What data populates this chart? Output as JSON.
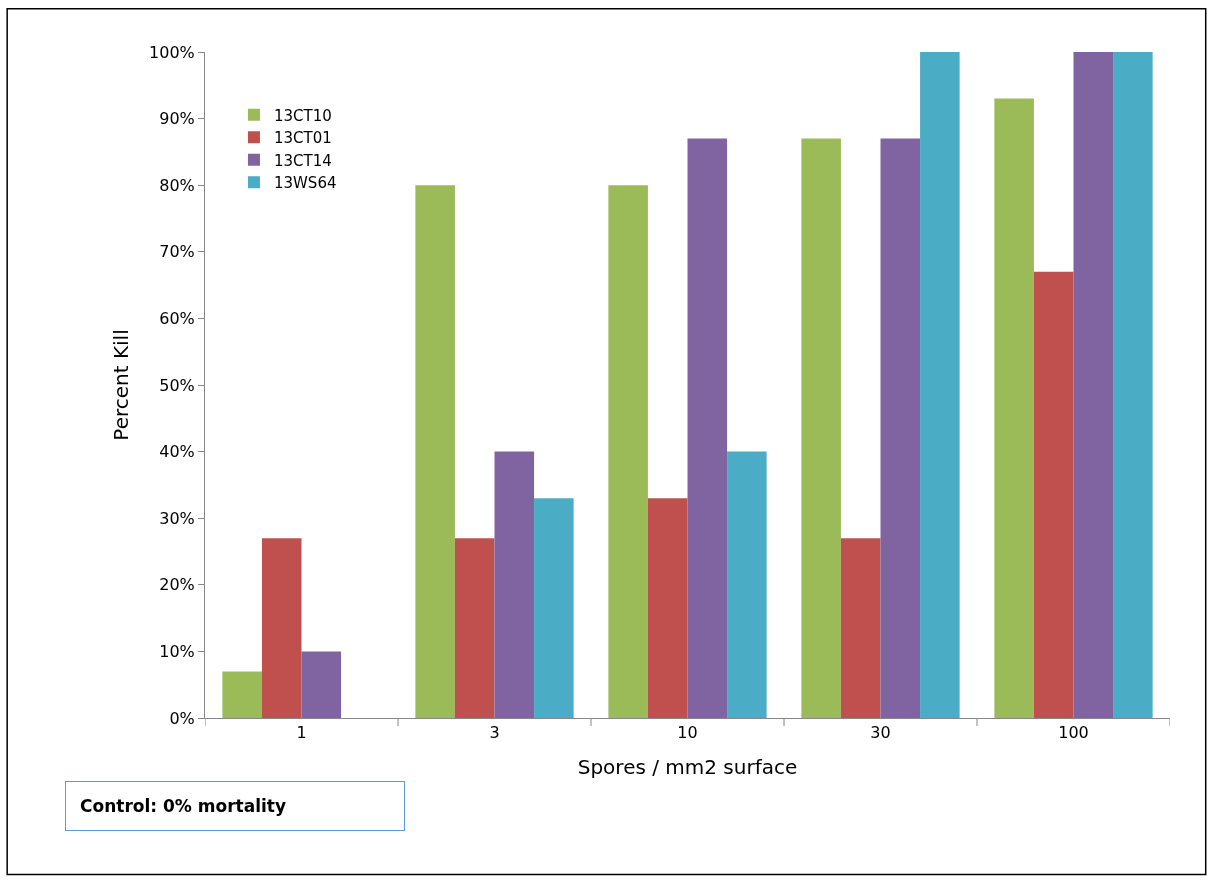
{
  "chart_data": {
    "type": "bar",
    "xlabel": "Spores / mm2 surface",
    "ylabel": "Percent Kill",
    "categories": [
      "1",
      "3",
      "10",
      "30",
      "100"
    ],
    "series": [
      {
        "name": "13CT10",
        "color": "#9bbb59",
        "values": [
          7,
          80,
          80,
          87,
          93
        ]
      },
      {
        "name": "13CT01",
        "color": "#c0504d",
        "values": [
          27,
          27,
          33,
          27,
          67
        ]
      },
      {
        "name": "13CT14",
        "color": "#8064a2",
        "values": [
          10,
          40,
          87,
          87,
          100
        ]
      },
      {
        "name": "13WS64",
        "color": "#4bacc6",
        "values": [
          null,
          33,
          40,
          100,
          100
        ]
      }
    ],
    "ylim": [
      0,
      100
    ],
    "yticks": [
      {
        "value": 0,
        "label": "0%"
      },
      {
        "value": 10,
        "label": "10%"
      },
      {
        "value": 20,
        "label": "20%"
      },
      {
        "value": 30,
        "label": "30%"
      },
      {
        "value": 40,
        "label": "40%"
      },
      {
        "value": 50,
        "label": "50%"
      },
      {
        "value": 60,
        "label": "60%"
      },
      {
        "value": 70,
        "label": "70%"
      },
      {
        "value": 80,
        "label": "80%"
      },
      {
        "value": 90,
        "label": "90%"
      },
      {
        "value": 100,
        "label": "100%"
      }
    ],
    "legend": "top left",
    "annotations": [
      "Control: 0% mortality"
    ]
  }
}
